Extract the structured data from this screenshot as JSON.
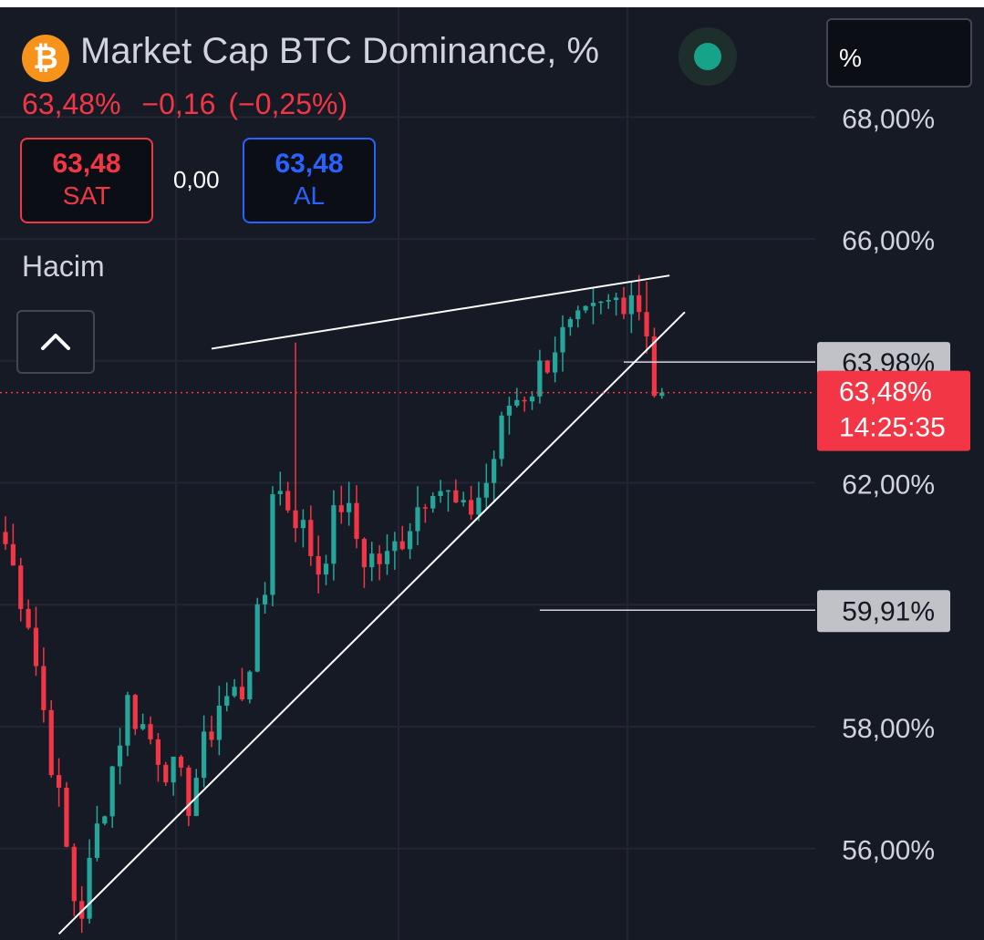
{
  "header": {
    "logo_glyph": "₿",
    "title": "Market Cap BTC Dominance, %",
    "unit_button": "%",
    "status_color": "#17a38a"
  },
  "quote": {
    "last": "63,48%",
    "change": "−0,16",
    "change_pct": "(−0,25%)"
  },
  "trade": {
    "sell_value": "63,48",
    "sell_label": "SAT",
    "spread": "0,00",
    "buy_value": "63,48",
    "buy_label": "AL"
  },
  "volume_label": "Hacim",
  "icons": {
    "collapse": "chevron-up-icon",
    "logo": "bitcoin-logo-icon",
    "status": "market-status-icon"
  },
  "colors": {
    "background": "#161a25",
    "up": "#26a69a",
    "down": "#f23645",
    "grid": "#232632",
    "text": "#d1d4dc",
    "label_bg": "#c0c2c8"
  },
  "chart_data": {
    "type": "candlestick",
    "y_axis": {
      "ticks": [
        56,
        58,
        62,
        66,
        68
      ],
      "tick_labels": [
        "56,00%",
        "58,00%",
        "62,00%",
        "66,00%",
        "68,00%"
      ],
      "range": [
        54.5,
        69.8
      ],
      "position": "right"
    },
    "grid": true,
    "price_labels": [
      {
        "value": 63.98,
        "label": "63,98%"
      },
      {
        "value": 59.91,
        "label": "59,91%"
      }
    ],
    "current_price": {
      "value": 63.48,
      "label": "63,48%",
      "countdown": "14:25:35"
    },
    "series_shape": [
      [
        0,
        61.0
      ],
      [
        3,
        59.8
      ],
      [
        6,
        57.5
      ],
      [
        9,
        55.2
      ],
      [
        10,
        55.0
      ],
      [
        12,
        56.3
      ],
      [
        16,
        58.4
      ],
      [
        19,
        57.8
      ],
      [
        24,
        56.8
      ],
      [
        28,
        58.4
      ],
      [
        31,
        58.6
      ],
      [
        34,
        60.2
      ],
      [
        35,
        62.0
      ],
      [
        38,
        61.5
      ],
      [
        41,
        60.6
      ],
      [
        44,
        61.7
      ],
      [
        47,
        60.8
      ],
      [
        50,
        60.7
      ],
      [
        53,
        61.4
      ],
      [
        56,
        62.1
      ],
      [
        60,
        61.4
      ],
      [
        63,
        62.0
      ],
      [
        66,
        63.3
      ],
      [
        69,
        63.6
      ],
      [
        72,
        64.3
      ],
      [
        75,
        64.5
      ],
      [
        79,
        64.9
      ],
      [
        82,
        65.2
      ],
      [
        84,
        64.6
      ],
      [
        85,
        63.5
      ]
    ],
    "trendlines": [
      {
        "name": "resistance",
        "from": [
          27,
          64.2
        ],
        "to": [
          87,
          65.4
        ]
      },
      {
        "name": "support",
        "from": [
          7,
          54.6
        ],
        "to": [
          89,
          64.8
        ]
      }
    ],
    "level_lines": [
      {
        "value": 63.98,
        "from_index": 81
      },
      {
        "value": 59.91,
        "from_index": 70
      }
    ]
  }
}
